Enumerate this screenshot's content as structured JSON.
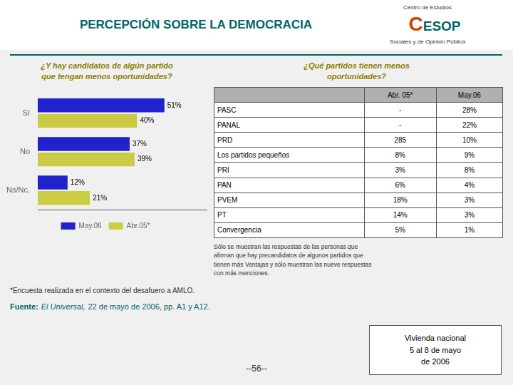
{
  "title": "PERCEPCIÓN SOBRE LA DEMOCRACIA",
  "logo": [
    "Centro de Estudios",
    "C",
    "ESOP",
    "Sociales y de Opinión Pública"
  ],
  "chart_data": [
    {
      "type": "bar",
      "orientation": "horizontal",
      "title": "¿Y hay candidatos de algún partido\nque tengan menos oportunidades?",
      "categories": [
        "Sí",
        "No",
        "Ns/Nc."
      ],
      "series": [
        {
          "name": "May.06",
          "color": "#2222cc",
          "values": [
            51,
            37,
            12
          ],
          "value_labels": [
            "51%",
            "37%",
            "12%"
          ]
        },
        {
          "name": "Abr.05*",
          "color": "#cccc44",
          "values": [
            40,
            39,
            21
          ],
          "value_labels": [
            "40%",
            "39%",
            "21%"
          ]
        }
      ],
      "xlim": [
        0,
        68
      ],
      "tick_labels": "y",
      "data_labels": true,
      "grid": false,
      "legend": "bottom"
    },
    {
      "type": "table",
      "title": "¿Qué partidos tienen menos\noportunidades?",
      "headers": [
        null,
        "Abr. 05*",
        "May.06"
      ],
      "rows": [
        [
          "PASC",
          "-",
          "28%"
        ],
        [
          "PANAL",
          "-",
          "22%"
        ],
        [
          "PRD",
          "285",
          "10%"
        ],
        [
          "Los partidos pequeños",
          "8%",
          "9%"
        ],
        [
          "PRI",
          "3%",
          "8%"
        ],
        [
          "PAN",
          "6%",
          "4%"
        ],
        [
          "PVEM",
          "18%",
          "3%"
        ],
        [
          "PT",
          "14%",
          "3%"
        ],
        [
          "Convergencia",
          "5%",
          "1%"
        ]
      ],
      "annotations": [
        "Sólo se muestran las respuestas de las personas que\nafirman que hay precandidatos de algunos partidos que\ntienen más Ventajas y sólo muestran las nueve respuestas\ncon más menciones."
      ]
    }
  ],
  "footnote": "*Encuesta realizada en el contexto del desafuero a AMLO.",
  "source": [
    "Fuente:",
    "El Universal,",
    "22 de mayo de 2006, pp. A1 y A12."
  ],
  "page_number": "--56--",
  "box_text": "Vivienda nacional\n5 al 8 de mayo\nde 2006"
}
